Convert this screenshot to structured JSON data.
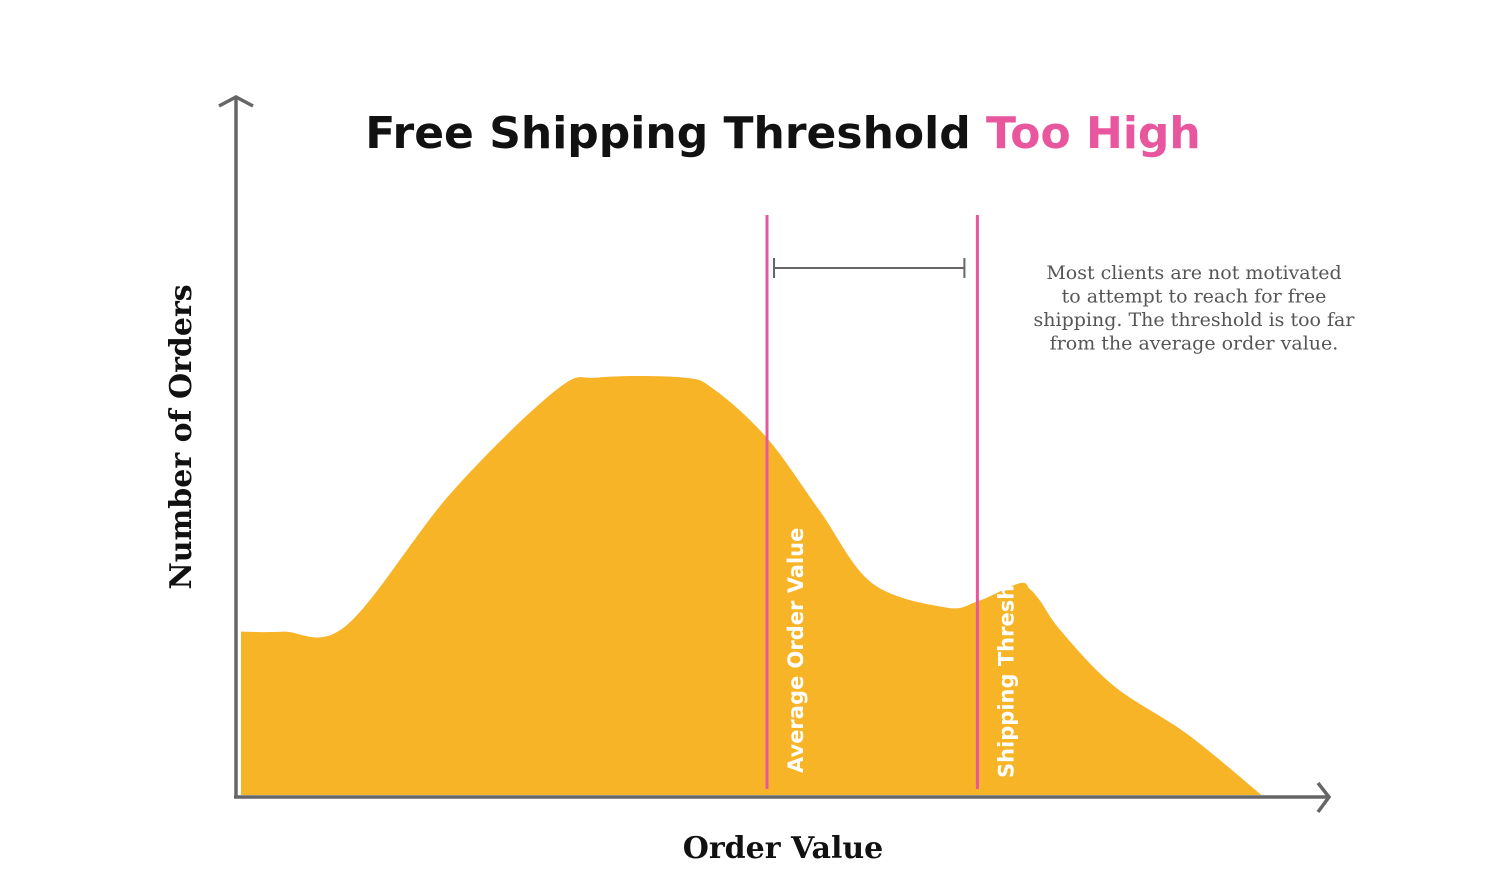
{
  "chart_data": {
    "type": "area",
    "title_parts": [
      {
        "text": "Free Shipping Threshold ",
        "color": "#111111"
      },
      {
        "text": "Too High",
        "color": "#e8579e"
      }
    ],
    "xlabel": "Order Value",
    "ylabel": "Number of Orders",
    "xlim": [
      0,
      100
    ],
    "ylim": [
      0,
      100
    ],
    "grid": false,
    "x": [
      0,
      4,
      10,
      20,
      30,
      34,
      42,
      45,
      50,
      55,
      60,
      67,
      70,
      74,
      75,
      76,
      78,
      83,
      90,
      97
    ],
    "y": [
      27,
      27,
      28,
      50,
      67,
      69,
      69,
      67,
      59,
      47,
      35,
      31,
      32,
      35,
      34,
      32,
      27,
      18,
      10,
      0
    ],
    "series": [
      {
        "fill_color": "#f8b427"
      }
    ],
    "markers": [
      {
        "label": "Average Order Value",
        "x": 50,
        "color": "#e8579e"
      },
      {
        "label": "Shipping Threshold",
        "x": 70,
        "color": "#e8579e"
      }
    ],
    "annotation": {
      "lines": [
        "Most clients are not motivated",
        "to attempt to reach for free",
        "shipping. The threshold is too far",
        "from the average order value."
      ],
      "color": "#555555"
    },
    "axis_color": "#666666"
  }
}
